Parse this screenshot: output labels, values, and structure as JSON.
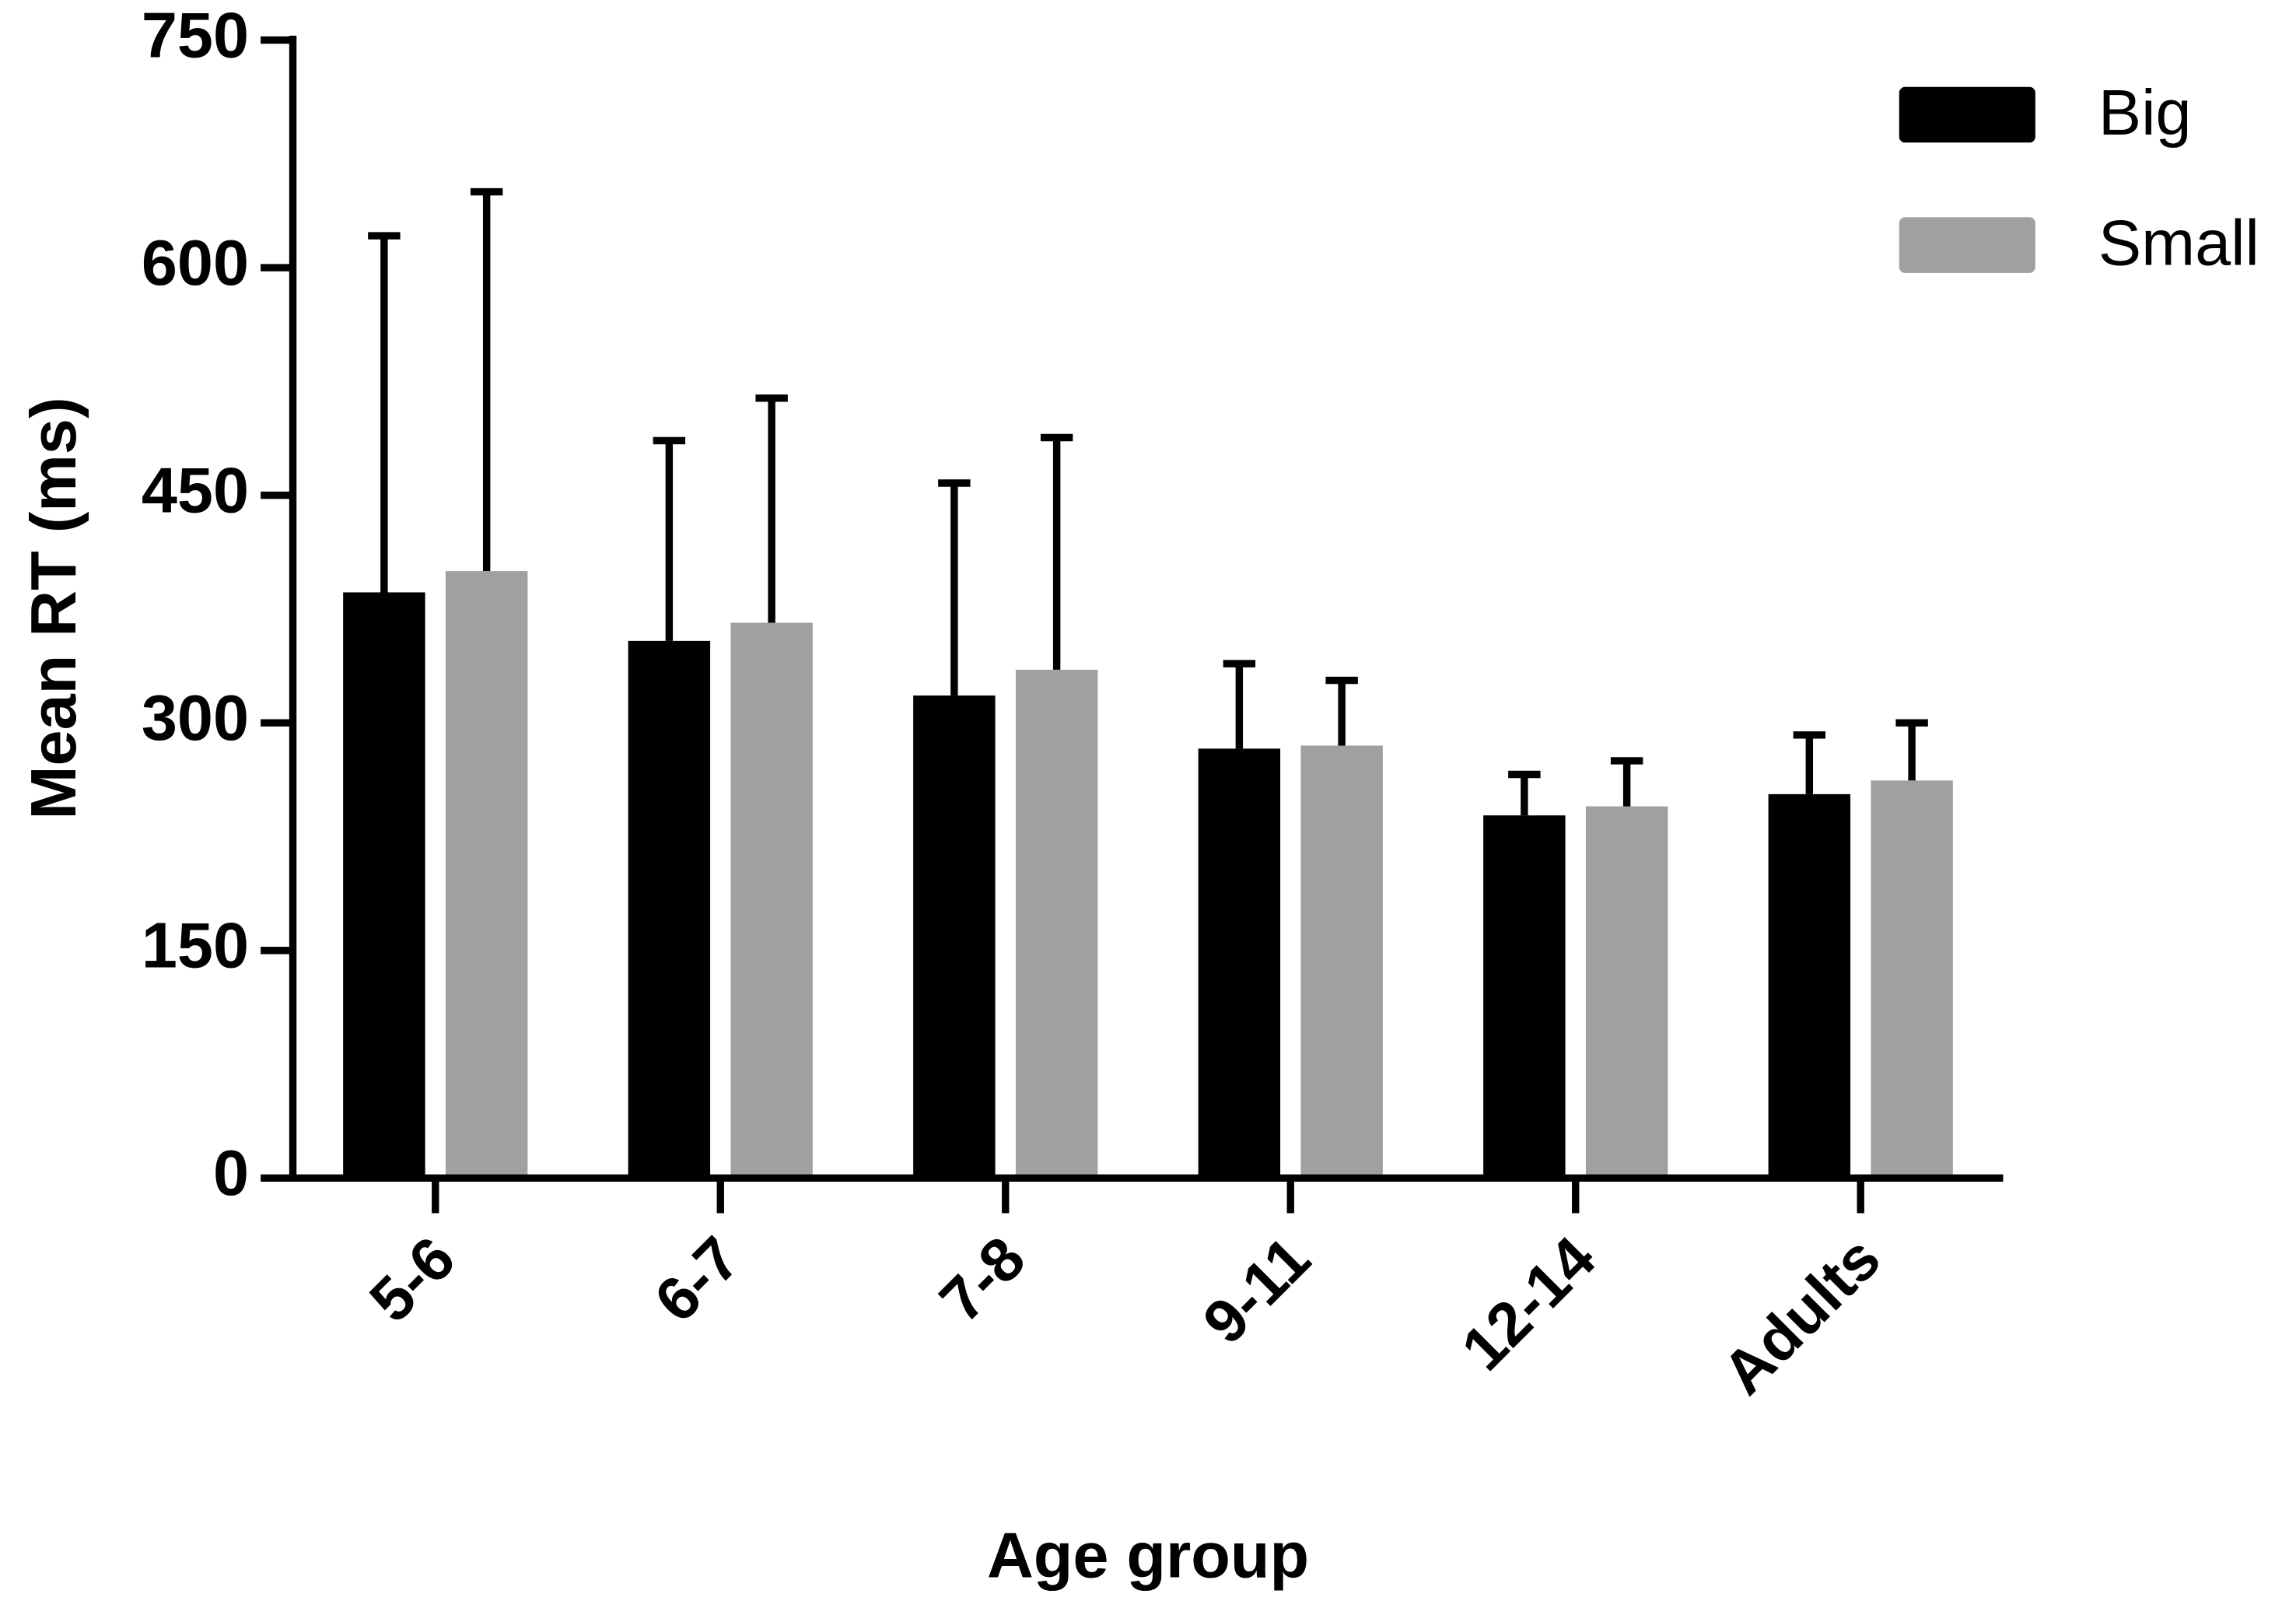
{
  "chart_data": {
    "type": "bar",
    "x_label": "Age group",
    "y_label": "Mean RT (ms)",
    "categories": [
      "5-6",
      "6-7",
      "7-8",
      "9-11",
      "12-14",
      "Adults"
    ],
    "series": [
      {
        "name": "Big",
        "color": "#000000",
        "values": [
          386,
          354,
          318,
          283,
          239,
          253
        ],
        "errors": [
          235,
          132,
          140,
          56,
          27,
          39
        ]
      },
      {
        "name": "Small",
        "color": "#a0a0a2",
        "values": [
          400,
          366,
          335,
          285,
          245,
          262
        ],
        "errors": [
          250,
          148,
          153,
          43,
          30,
          38
        ]
      }
    ],
    "ylim": [
      0,
      750
    ],
    "yticks": [
      0,
      150,
      300,
      450,
      600,
      750
    ],
    "grid": false,
    "legend": "top-right"
  }
}
